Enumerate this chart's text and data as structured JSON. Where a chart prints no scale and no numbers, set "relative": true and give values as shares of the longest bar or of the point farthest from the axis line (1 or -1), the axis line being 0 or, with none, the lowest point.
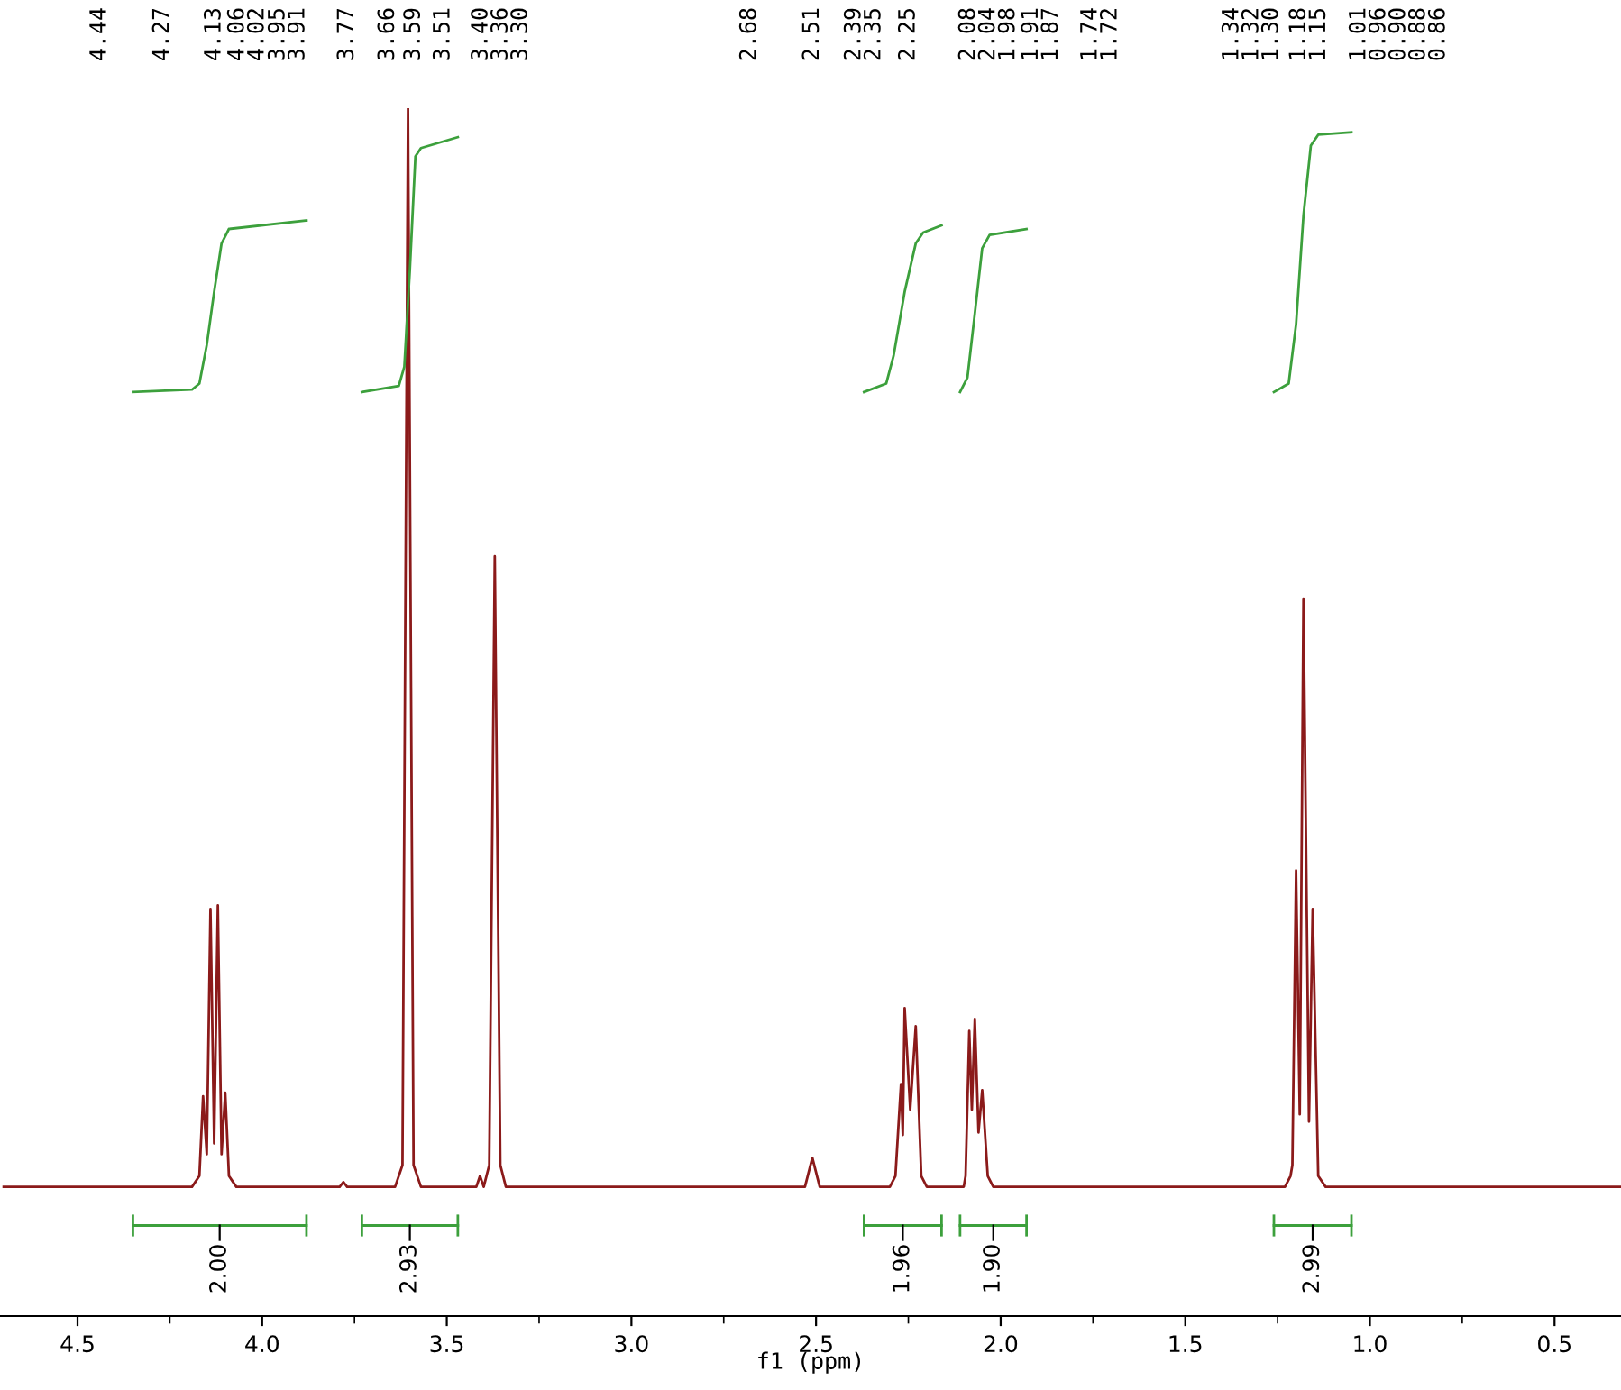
{
  "chart_data": {
    "type": "line",
    "relative": true,
    "xlabel": "f1 (ppm)",
    "xlim": [
      4.71,
      0.32
    ],
    "xticks": [
      {
        "value": 4.5,
        "label": "4.5"
      },
      {
        "value": 4.0,
        "label": "4.0"
      },
      {
        "value": 3.5,
        "label": "3.5"
      },
      {
        "value": 3.0,
        "label": "3.0"
      },
      {
        "value": 2.5,
        "label": "2.5"
      },
      {
        "value": 2.0,
        "label": "2.0"
      },
      {
        "value": 1.5,
        "label": "1.5"
      },
      {
        "value": 1.0,
        "label": "1.0"
      },
      {
        "value": 0.5,
        "label": "0.5"
      }
    ],
    "series": [
      {
        "color": "#8b1a1a",
        "x": [
          4.7,
          4.19,
          4.17,
          4.16,
          4.15,
          4.14,
          4.13,
          4.12,
          4.11,
          4.1,
          4.09,
          4.07,
          3.79,
          3.78,
          3.77,
          3.64,
          3.62,
          3.605,
          3.59,
          3.57,
          3.42,
          3.41,
          3.4,
          3.385,
          3.37,
          3.355,
          3.34,
          2.53,
          2.51,
          2.49,
          2.3,
          2.285,
          2.27,
          2.265,
          2.26,
          2.245,
          2.23,
          2.215,
          2.2,
          2.1,
          2.095,
          2.085,
          2.078,
          2.07,
          2.06,
          2.05,
          2.035,
          2.02,
          1.23,
          1.215,
          1.21,
          1.2,
          1.19,
          1.18,
          1.165,
          1.155,
          1.14,
          1.12,
          0.32
        ],
        "values": [
          0.107,
          0.107,
          0.116,
          0.182,
          0.134,
          0.337,
          0.143,
          0.34,
          0.134,
          0.185,
          0.116,
          0.107,
          0.107,
          0.111,
          0.107,
          0.107,
          0.125,
          1,
          0.125,
          0.107,
          0.107,
          0.116,
          0.107,
          0.125,
          0.629,
          0.125,
          0.107,
          0.107,
          0.131,
          0.107,
          0.107,
          0.116,
          0.192,
          0.15,
          0.255,
          0.171,
          0.24,
          0.116,
          0.107,
          0.107,
          0.116,
          0.236,
          0.171,
          0.246,
          0.152,
          0.187,
          0.116,
          0.107,
          0.107,
          0.116,
          0.125,
          0.369,
          0.167,
          0.594,
          0.161,
          0.337,
          0.116,
          0.107,
          0.107
        ]
      },
      {
        "color": "#3ca03c",
        "x": [
          4.35,
          4.19,
          4.17,
          4.15,
          4.13,
          4.11,
          4.09,
          3.88
        ],
        "values": [
          0.765,
          0.767,
          0.772,
          0.804,
          0.848,
          0.888,
          0.9,
          0.907
        ]
      },
      {
        "color": "#3ca03c",
        "x": [
          3.73,
          3.63,
          3.615,
          3.6,
          3.585,
          3.57,
          3.47
        ],
        "values": [
          0.765,
          0.77,
          0.786,
          0.866,
          0.96,
          0.967,
          0.976
        ]
      },
      {
        "color": "#3ca03c",
        "x": [
          2.37,
          2.31,
          2.29,
          2.26,
          2.23,
          2.21,
          2.16
        ],
        "values": [
          0.765,
          0.772,
          0.795,
          0.848,
          0.888,
          0.897,
          0.903
        ]
      },
      {
        "color": "#3ca03c",
        "x": [
          2.11,
          2.09,
          2.07,
          2.05,
          2.03,
          1.93
        ],
        "values": [
          0.765,
          0.777,
          0.83,
          0.884,
          0.895,
          0.9
        ]
      },
      {
        "color": "#3ca03c",
        "x": [
          1.26,
          1.22,
          1.2,
          1.18,
          1.16,
          1.14,
          1.05
        ],
        "values": [
          0.765,
          0.772,
          0.821,
          0.911,
          0.969,
          0.978,
          0.98
        ]
      }
    ],
    "annotations": [
      "4.44",
      "4.27",
      "4.13",
      "4.06",
      "4.02",
      "3.95",
      "3.91",
      "3.77",
      "3.66",
      "3.59",
      "3.51",
      "3.40",
      "3.36",
      "3.30",
      "2.68",
      "2.51",
      "2.39",
      "2.35",
      "2.25",
      "2.08",
      "2.04",
      "1.98",
      "1.91",
      "1.87",
      "1.74",
      "1.72",
      "1.34",
      "1.32",
      "1.30",
      "1.18",
      "1.15",
      "1.01",
      "0.96",
      "0.90",
      "0.88",
      "0.86",
      "2.00",
      "2.93",
      "1.96",
      "1.90",
      "2.99"
    ]
  }
}
